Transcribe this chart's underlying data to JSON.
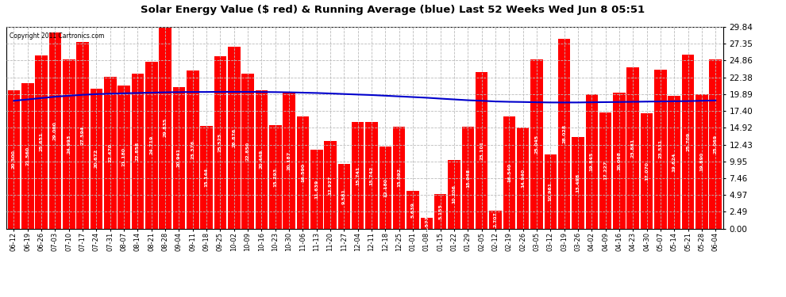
{
  "title": "Solar Energy Value ($ red) & Running Average (blue) Last 52 Weeks Wed Jun 8 05:51",
  "copyright": "Copyright 2011 Cartronics.com",
  "bar_color": "#ff0000",
  "line_color": "#0000cc",
  "background_color": "#ffffff",
  "plot_bg_color": "#ffffff",
  "grid_color": "#bbbbbb",
  "ylim": [
    0.0,
    29.84
  ],
  "yticks": [
    0.0,
    2.49,
    4.97,
    7.46,
    9.95,
    12.43,
    14.92,
    17.4,
    19.89,
    22.38,
    24.86,
    27.35,
    29.84
  ],
  "categories": [
    "06-12",
    "06-19",
    "06-26",
    "07-03",
    "07-10",
    "07-17",
    "07-24",
    "07-31",
    "08-07",
    "08-14",
    "08-21",
    "08-28",
    "09-04",
    "09-11",
    "09-18",
    "09-25",
    "10-02",
    "10-09",
    "10-16",
    "10-23",
    "10-30",
    "11-06",
    "11-13",
    "11-20",
    "11-27",
    "12-04",
    "12-11",
    "12-18",
    "12-25",
    "01-01",
    "01-08",
    "01-15",
    "01-22",
    "01-29",
    "02-05",
    "02-12",
    "02-19",
    "02-26",
    "03-05",
    "03-12",
    "03-19",
    "03-26",
    "04-02",
    "04-09",
    "04-16",
    "04-23",
    "04-30",
    "05-07",
    "05-14",
    "05-21",
    "05-28",
    "06-04"
  ],
  "values": [
    20.5,
    21.56,
    25.651,
    29.0,
    24.993,
    27.594,
    20.672,
    22.47,
    21.18,
    22.858,
    24.719,
    29.835,
    20.941,
    23.376,
    15.144,
    25.525,
    26.876,
    22.85,
    20.449,
    15.293,
    20.187,
    16.59,
    11.639,
    12.927,
    9.581,
    15.741,
    15.742,
    12.18,
    15.092,
    5.639,
    1.577,
    5.155,
    10.206,
    15.048,
    23.101,
    2.707,
    16.54,
    14.94,
    25.045,
    10.961,
    28.028,
    13.498,
    19.845,
    17.227,
    20.068,
    23.881,
    17.07,
    23.531,
    19.624,
    25.709,
    19.89,
    25.069
  ],
  "running_avg": [
    18.9,
    19.1,
    19.3,
    19.5,
    19.65,
    19.78,
    19.88,
    19.95,
    20.0,
    20.05,
    20.1,
    20.15,
    20.18,
    20.2,
    20.2,
    20.22,
    20.22,
    20.22,
    20.2,
    20.18,
    20.15,
    20.1,
    20.05,
    19.98,
    19.9,
    19.82,
    19.75,
    19.65,
    19.55,
    19.45,
    19.35,
    19.22,
    19.1,
    18.98,
    18.9,
    18.8,
    18.75,
    18.72,
    18.68,
    18.65,
    18.65,
    18.65,
    18.68,
    18.7,
    18.72,
    18.75,
    18.78,
    18.8,
    18.83,
    18.85,
    18.9,
    18.95
  ]
}
